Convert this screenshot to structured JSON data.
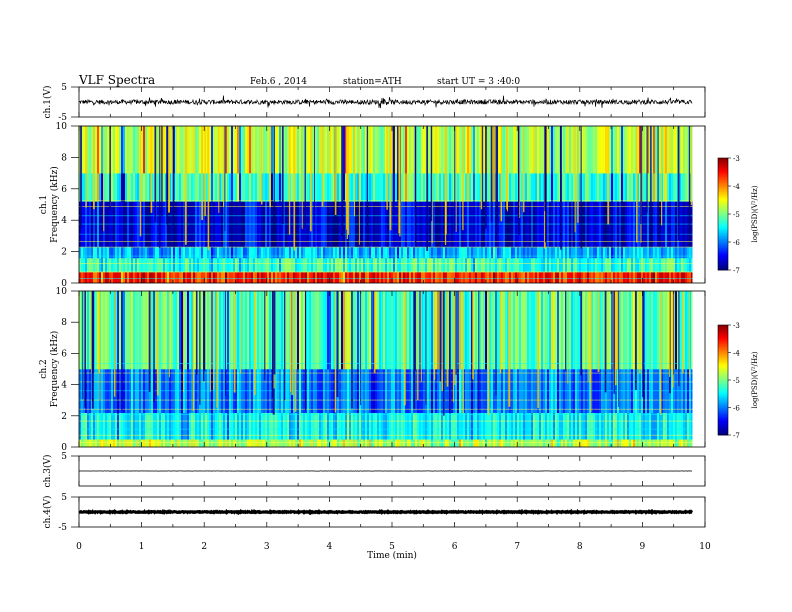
{
  "header": {
    "title": "VLF Spectra",
    "date": "Feb.6 , 2014",
    "station": "station=ATH",
    "start": "start UT = 3 :40:0"
  },
  "chart_data": [
    {
      "type": "line",
      "panel": "ch1-waveform",
      "ylabel": "ch.1(V)",
      "ylim": [
        -5,
        5
      ],
      "yticks": [
        "5",
        "-5"
      ],
      "xlim": [
        0,
        10
      ],
      "data_end_min": 9.8,
      "baseline_volts": 0.0,
      "noise_amplitude_volts": 1.5
    },
    {
      "type": "heatmap",
      "panel": "ch1-spectrogram",
      "ylabel": "Frequency (kHz)",
      "channel_label": "ch.1",
      "ylim": [
        0,
        10
      ],
      "yticks": [
        "0",
        "2",
        "4",
        "6",
        "8",
        "10"
      ],
      "xlim": [
        0,
        10
      ],
      "data_end_min": 9.8,
      "colorbar": {
        "label": "log(PSD)(V²/Hz)",
        "range": [
          -7,
          -3
        ],
        "ticks": [
          "-3",
          "-4",
          "-5",
          "-6",
          "-7"
        ]
      },
      "bands_kHz": [
        {
          "from": 0,
          "to": 0.7,
          "logPSD": -3.6
        },
        {
          "from": 0.7,
          "to": 1.6,
          "logPSD": -5.3
        },
        {
          "from": 1.6,
          "to": 2.3,
          "logPSD": -5.8
        },
        {
          "from": 2.3,
          "to": 5.2,
          "logPSD": -6.6
        },
        {
          "from": 5.2,
          "to": 7.0,
          "logPSD": -5.3
        },
        {
          "from": 7.0,
          "to": 10,
          "logPSD": -4.8
        }
      ]
    },
    {
      "type": "heatmap",
      "panel": "ch2-spectrogram",
      "ylabel": "Frequency (kHz)",
      "channel_label": "ch.2",
      "ylim": [
        0,
        10
      ],
      "yticks": [
        "0",
        "2",
        "4",
        "6",
        "8",
        "10"
      ],
      "xlim": [
        0,
        10
      ],
      "data_end_min": 9.8,
      "colorbar": {
        "label": "log(PSD)(V²/Hz)",
        "range": [
          -7,
          -3
        ],
        "ticks": [
          "-3",
          "-4",
          "-5",
          "-6",
          "-7"
        ]
      },
      "bands_kHz": [
        {
          "from": 0,
          "to": 0.5,
          "logPSD": -4.8
        },
        {
          "from": 0.5,
          "to": 2.2,
          "logPSD": -5.5
        },
        {
          "from": 2.2,
          "to": 5.0,
          "logPSD": -6.0
        },
        {
          "from": 5.0,
          "to": 10,
          "logPSD": -5.2
        }
      ]
    },
    {
      "type": "line",
      "panel": "ch3-waveform",
      "ylabel": "ch.3(V)",
      "ylim": [
        -5,
        5
      ],
      "yticks": [
        "5"
      ],
      "xlim": [
        0,
        10
      ],
      "data_end_min": 9.8,
      "baseline_volts": 0.0,
      "noise_amplitude_volts": 0.1
    },
    {
      "type": "line",
      "panel": "ch4-waveform",
      "ylabel": "ch.4(V)",
      "ylim": [
        -5,
        5
      ],
      "yticks": [
        "5",
        "-5"
      ],
      "xlim": [
        0,
        10
      ],
      "data_end_min": 9.8,
      "baseline_volts": 0.0,
      "noise_amplitude_volts": 0.3
    }
  ],
  "xaxis": {
    "label": "Time (min)",
    "ticks": [
      "0",
      "1",
      "2",
      "3",
      "4",
      "5",
      "6",
      "7",
      "8",
      "9",
      "10"
    ]
  }
}
